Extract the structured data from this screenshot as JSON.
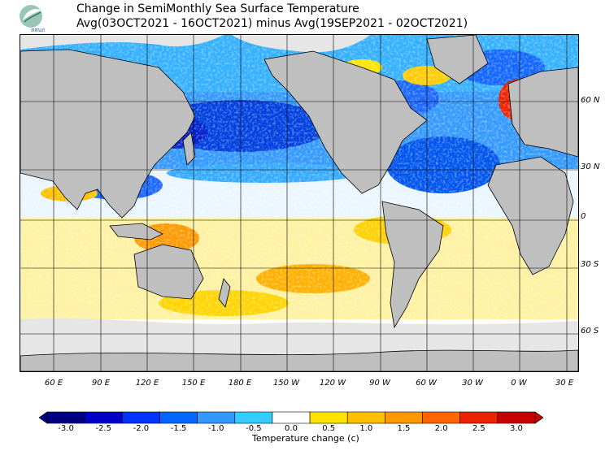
{
  "logo": {
    "text": "สสนก"
  },
  "title": {
    "line1": "Change in SemiMonthly Sea Surface Temperature",
    "line2": "Avg(03OCT2021 - 16OCT2021) minus Avg(19SEP2021 - 02OCT2021)"
  },
  "map": {
    "latitude_labels": [
      "60 N",
      "30 N",
      "0",
      "30 S",
      "60 S"
    ],
    "longitude_labels": [
      "60 E",
      "90 E",
      "120 E",
      "150 E",
      "180 E",
      "150 W",
      "120 W",
      "90 W",
      "60 W",
      "30 W",
      "0 W",
      "30 E"
    ],
    "colors": {
      "land": "#bfbfbf",
      "ice": "#e6e6e6",
      "coastline": "#000000"
    }
  },
  "colorbar": {
    "label": "Temperature change  (c)",
    "tick_labels": [
      "-3.0",
      "-2.5",
      "-2.0",
      "-1.5",
      "-1.0",
      "-0.5",
      "0.0",
      "0.5",
      "1.0",
      "1.5",
      "2.0",
      "2.5",
      "3.0"
    ],
    "colors": [
      "#000080",
      "#0000c8",
      "#0033ff",
      "#0066ff",
      "#3399ff",
      "#33ccff",
      "#ffffff",
      "#ffe400",
      "#ffc000",
      "#ff9900",
      "#ff6600",
      "#ee2200",
      "#c80000"
    ]
  }
}
